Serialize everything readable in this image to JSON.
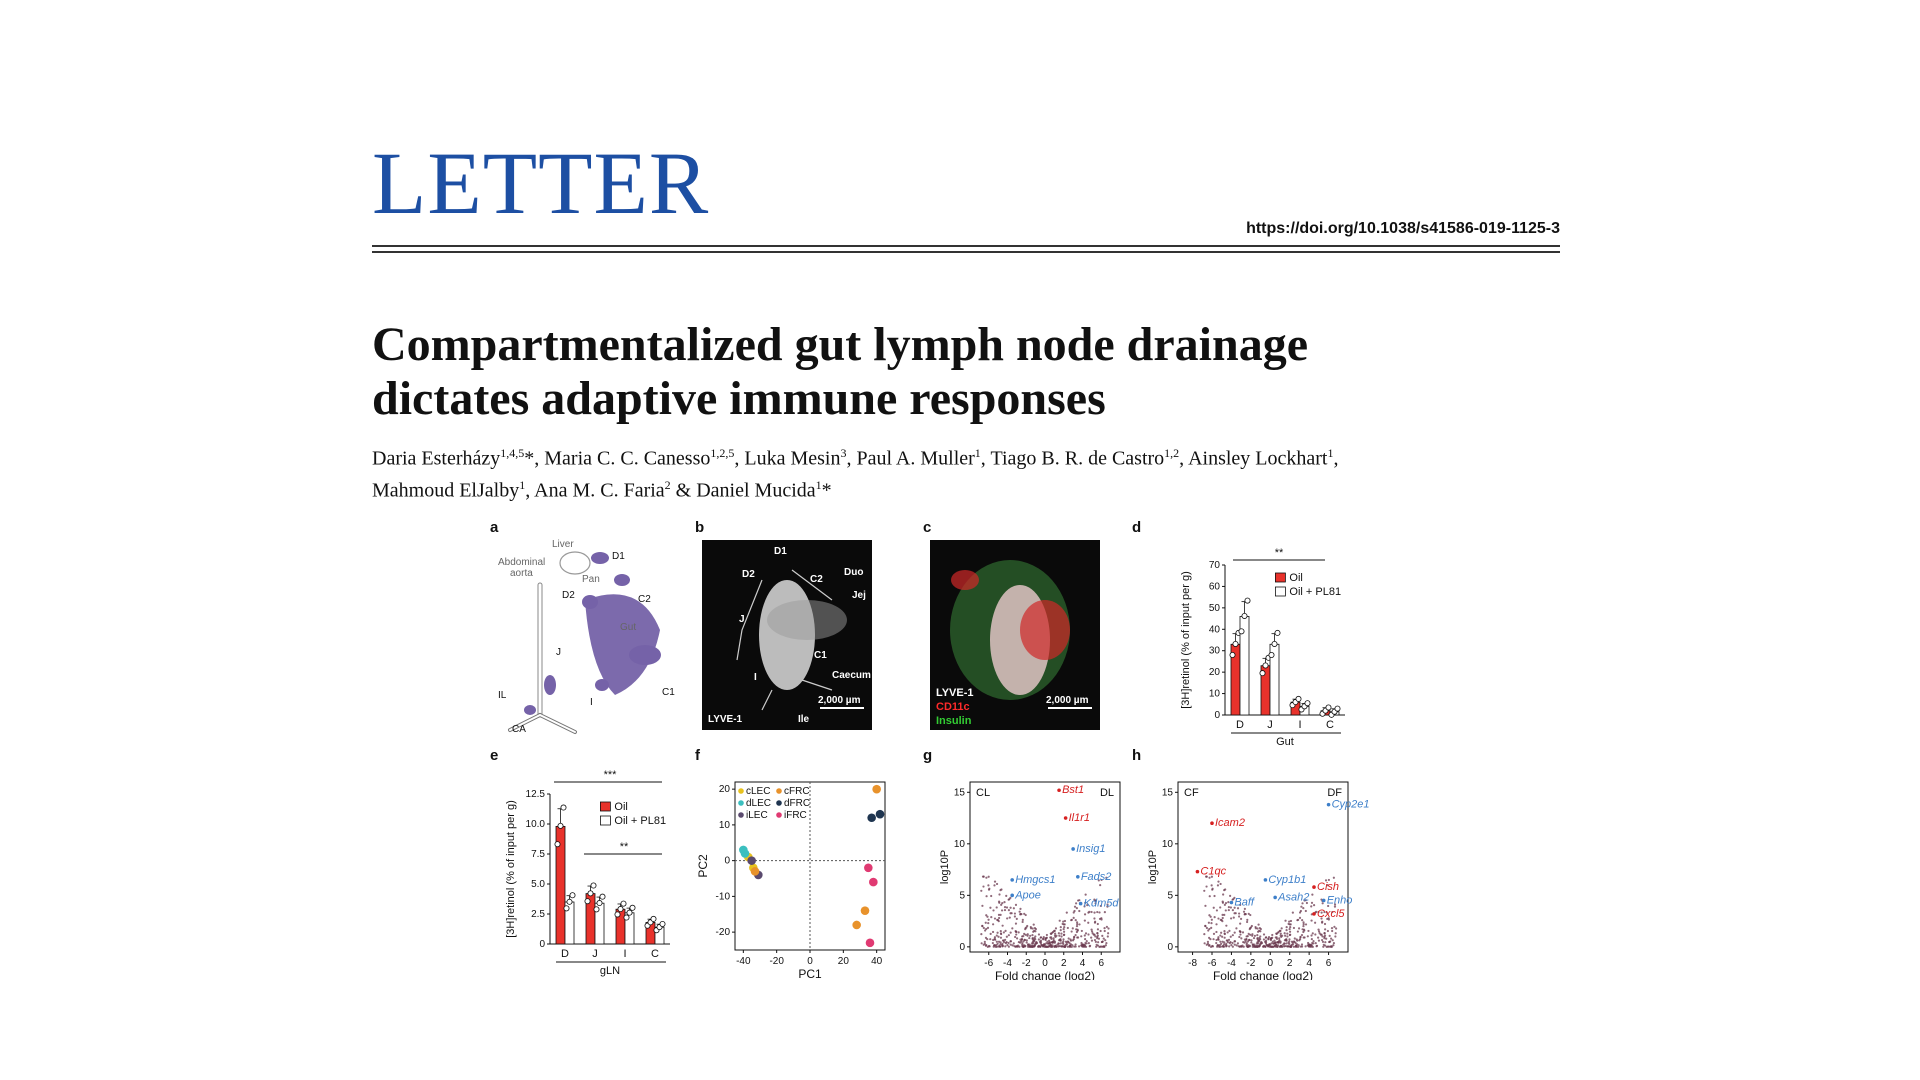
{
  "header": {
    "section": "LETTER",
    "doi": "https://doi.org/10.1038/s41586-019-1125-3"
  },
  "article": {
    "title_line1": "Compartmentalized gut lymph node drainage",
    "title_line2": "dictates adaptive immune responses",
    "authors": [
      {
        "name": "Daria Esterházy",
        "aff": "1,4,5",
        "star": "*",
        "sep": ", "
      },
      {
        "name": "Maria C. C. Canesso",
        "aff": "1,2,5",
        "star": "",
        "sep": ", "
      },
      {
        "name": "Luka Mesin",
        "aff": "3",
        "star": "",
        "sep": ", "
      },
      {
        "name": "Paul A. Muller",
        "aff": "1",
        "star": "",
        "sep": ", "
      },
      {
        "name": "Tiago B. R. de Castro",
        "aff": "1,2",
        "star": "",
        "sep": ", "
      },
      {
        "name": "Ainsley Lockhart",
        "aff": "1",
        "star": "",
        "sep": ","
      },
      {
        "name": "Mahmoud ElJalby",
        "aff": "1",
        "star": "",
        "sep": ", "
      },
      {
        "name": "Ana M. C. Faria",
        "aff": "2",
        "star": "",
        "sep": " & "
      },
      {
        "name": "Daniel Mucida",
        "aff": "1",
        "star": "*",
        "sep": ""
      }
    ]
  },
  "figure": {
    "panel_labels": [
      "a",
      "b",
      "c",
      "d",
      "e",
      "f",
      "g",
      "h"
    ],
    "a": {
      "labels": [
        "Liver",
        "D1",
        "Abdominal",
        "aorta",
        "Pan",
        "D2",
        "C2",
        "Gut",
        "J",
        "IL",
        "I",
        "C1",
        "CA"
      ]
    },
    "b": {
      "labels": [
        "D1",
        "D2",
        "C2",
        "Duo",
        "Jej",
        "J",
        "I",
        "C1",
        "Caecum",
        "Ile"
      ],
      "stain": "LYVE-1",
      "scale": "2,000 µm"
    },
    "c": {
      "stains": [
        "LYVE-1",
        "CD11c",
        "Insulin"
      ],
      "stain_colors": [
        "#ffffff",
        "#ff2a2a",
        "#33cc33"
      ],
      "scale": "2,000 µm"
    }
  },
  "chart_data": [
    {
      "panel": "d",
      "type": "bar",
      "categories": [
        "D",
        "J",
        "I",
        "C"
      ],
      "group_label": "Gut",
      "ylabel": "[3H]retinol (% of input per g)",
      "ylim": [
        0,
        70
      ],
      "yticks": [
        0,
        10,
        20,
        30,
        40,
        50,
        60,
        70
      ],
      "series": [
        {
          "name": "Oil",
          "color": "#e8322b",
          "values": [
            33,
            23,
            6,
            2
          ]
        },
        {
          "name": "Oil + PL81",
          "color": "#ffffff",
          "values": [
            46,
            33,
            4,
            1.5
          ]
        }
      ],
      "significance": [
        {
          "label": "**"
        }
      ]
    },
    {
      "panel": "e",
      "type": "bar",
      "categories": [
        "D",
        "J",
        "I",
        "C"
      ],
      "group_label": "gLN",
      "ylabel": "[3H]retinol (% of input per g)",
      "ylim": [
        0,
        12.5
      ],
      "yticks": [
        "0",
        "2.5",
        "5.0",
        "7.5",
        "10.0",
        "12.5"
      ],
      "series": [
        {
          "name": "Oil",
          "color": "#e8322b",
          "values": [
            9.8,
            4.2,
            2.9,
            1.8
          ]
        },
        {
          "name": "Oil + PL81",
          "color": "#ffffff",
          "values": [
            3.5,
            3.4,
            2.6,
            1.4
          ]
        }
      ],
      "significance": [
        {
          "label": "***"
        },
        {
          "label": "**"
        }
      ]
    },
    {
      "panel": "f",
      "type": "scatter",
      "xlabel": "PC1",
      "ylabel": "PC2",
      "xticks": [
        -40,
        -20,
        0,
        20,
        40
      ],
      "yticks": [
        20,
        10,
        0,
        -10,
        -20
      ],
      "legend": [
        {
          "name": "cLEC",
          "color": "#e8c21f"
        },
        {
          "name": "cFRC",
          "color": "#e8922b"
        },
        {
          "name": "dLEC",
          "color": "#3bbfbf"
        },
        {
          "name": "dFRC",
          "color": "#1f3550"
        },
        {
          "name": "iLEC",
          "color": "#5a4a6e"
        },
        {
          "name": "iFRC",
          "color": "#e03a72"
        }
      ],
      "points": [
        {
          "group": "cLEC",
          "x": -37,
          "y": 1
        },
        {
          "group": "cLEC",
          "x": -34,
          "y": -2
        },
        {
          "group": "dLEC",
          "x": -40,
          "y": 3
        },
        {
          "group": "dLEC",
          "x": -39,
          "y": 2
        },
        {
          "group": "iLEC",
          "x": -35,
          "y": 0
        },
        {
          "group": "iLEC",
          "x": -31,
          "y": -4
        },
        {
          "group": "cFRC",
          "x": 40,
          "y": 20
        },
        {
          "group": "cFRC",
          "x": 28,
          "y": -18
        },
        {
          "group": "cFRC",
          "x": 33,
          "y": -14
        },
        {
          "group": "cFRC",
          "x": -33,
          "y": -3
        },
        {
          "group": "dFRC",
          "x": 42,
          "y": 13
        },
        {
          "group": "dFRC",
          "x": 37,
          "y": 12
        },
        {
          "group": "iFRC",
          "x": 35,
          "y": -2
        },
        {
          "group": "iFRC",
          "x": 38,
          "y": -6
        },
        {
          "group": "iFRC",
          "x": 36,
          "y": -23
        }
      ]
    },
    {
      "panel": "g",
      "type": "scatter",
      "xlabel": "Fold change (log2)",
      "ylabel": "log10P",
      "xticks": [
        -6,
        -4,
        -2,
        0,
        2,
        4,
        6
      ],
      "yticks": [
        15,
        10,
        5,
        0
      ],
      "corner_labels": [
        "CL",
        "DL"
      ],
      "genes": [
        {
          "name": "Bst1",
          "color": "#d62020",
          "x": 1.5,
          "y": 15.2
        },
        {
          "name": "Il1r1",
          "color": "#d62020",
          "x": 2.2,
          "y": 12.5
        },
        {
          "name": "Insig1",
          "color": "#3d7fc9",
          "x": 3.0,
          "y": 9.5
        },
        {
          "name": "Hmgcs1",
          "color": "#3d7fc9",
          "x": -3.5,
          "y": 6.5
        },
        {
          "name": "Fads2",
          "color": "#3d7fc9",
          "x": 3.5,
          "y": 6.8
        },
        {
          "name": "Apoe",
          "color": "#3d7fc9",
          "x": -3.5,
          "y": 5.0
        },
        {
          "name": "Kdm5d",
          "color": "#3d7fc9",
          "x": 3.8,
          "y": 4.2
        }
      ]
    },
    {
      "panel": "h",
      "type": "scatter",
      "xlabel": "Fold change (log2)",
      "ylabel": "log10P",
      "xticks": [
        -8,
        -6,
        -4,
        -2,
        0,
        2,
        4,
        6
      ],
      "yticks": [
        15,
        10,
        5,
        0
      ],
      "corner_labels": [
        "CF",
        "DF"
      ],
      "genes": [
        {
          "name": "Cyp2e1",
          "color": "#3d7fc9",
          "x": 6.0,
          "y": 13.8
        },
        {
          "name": "Icam2",
          "color": "#d62020",
          "x": -6.0,
          "y": 12.0
        },
        {
          "name": "C1qc",
          "color": "#d62020",
          "x": -7.5,
          "y": 7.3
        },
        {
          "name": "Cyp1b1",
          "color": "#3d7fc9",
          "x": -0.5,
          "y": 6.5
        },
        {
          "name": "Cish",
          "color": "#d62020",
          "x": 4.5,
          "y": 5.8
        },
        {
          "name": "Asah2",
          "color": "#3d7fc9",
          "x": 0.5,
          "y": 4.8
        },
        {
          "name": "Enho",
          "color": "#3d7fc9",
          "x": 5.5,
          "y": 4.5
        },
        {
          "name": "Baff",
          "color": "#3d7fc9",
          "x": -4.0,
          "y": 4.3
        },
        {
          "name": "Cxcl5",
          "color": "#d62020",
          "x": 4.5,
          "y": 3.2
        }
      ]
    }
  ]
}
